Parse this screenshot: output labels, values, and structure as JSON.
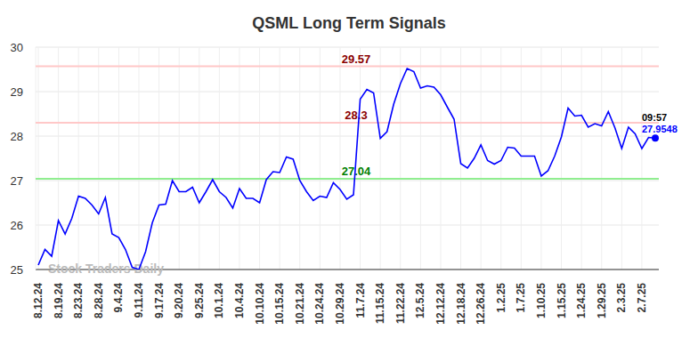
{
  "chart_data": {
    "type": "line",
    "title": "QSML Long Term Signals",
    "categories": [
      "8.12.24",
      null,
      null,
      "8.19.24",
      null,
      null,
      "8.23.24",
      null,
      null,
      "8.28.24",
      null,
      null,
      "9.4.24",
      null,
      null,
      "9.11.24",
      null,
      null,
      "9.17.24",
      null,
      null,
      "9.20.24",
      null,
      null,
      "9.25.24",
      null,
      null,
      "10.1.24",
      null,
      null,
      "10.4.24",
      null,
      null,
      "10.10.24",
      null,
      null,
      "10.15.24",
      null,
      null,
      "10.21.24",
      null,
      null,
      "10.24.24",
      null,
      null,
      "10.29.24",
      null,
      null,
      "11.7.24",
      null,
      null,
      "11.15.24",
      null,
      null,
      "11.22.24",
      null,
      null,
      "12.5.24",
      null,
      null,
      "12.12.24",
      null,
      null,
      "12.18.24",
      null,
      null,
      "12.26.24",
      null,
      null,
      "1.2.25",
      null,
      null,
      "1.7.25",
      null,
      null,
      "1.10.25",
      null,
      null,
      "1.15.25",
      null,
      null,
      "1.24.25",
      null,
      null,
      "1.29.25",
      null,
      null,
      "2.3.25",
      null,
      null,
      "2.7.25",
      null,
      null
    ],
    "values": [
      25.1,
      25.45,
      25.3,
      26.1,
      25.8,
      26.15,
      26.65,
      26.6,
      26.45,
      26.25,
      26.62,
      25.8,
      25.72,
      25.45,
      25.05,
      25.0,
      25.4,
      26.05,
      26.45,
      26.47,
      27.0,
      26.75,
      26.75,
      26.85,
      26.5,
      26.75,
      27.02,
      26.75,
      26.62,
      26.38,
      26.82,
      26.6,
      26.6,
      26.5,
      27.02,
      27.2,
      27.18,
      27.53,
      27.48,
      27.0,
      26.75,
      26.55,
      26.65,
      26.62,
      26.95,
      26.8,
      26.58,
      26.68,
      28.83,
      29.05,
      28.97,
      27.95,
      28.1,
      28.72,
      29.18,
      29.52,
      29.45,
      29.08,
      29.13,
      29.1,
      28.93,
      28.65,
      28.38,
      27.38,
      27.28,
      27.5,
      27.8,
      27.45,
      27.37,
      27.45,
      27.75,
      27.73,
      27.55,
      27.55,
      27.55,
      27.1,
      27.22,
      27.55,
      27.98,
      28.63,
      28.45,
      28.47,
      28.2,
      28.28,
      28.23,
      28.55,
      28.18,
      27.72,
      28.2,
      28.05,
      27.72,
      27.97,
      27.9548
    ],
    "color": "#0000ff",
    "ylim": [
      25,
      30
    ],
    "yticks": [
      25,
      26,
      27,
      28,
      29,
      30
    ],
    "grid": true,
    "annotations": [
      {
        "value": 29.57,
        "label": "29.57",
        "color": "#8b0000"
      },
      {
        "value": 28.3,
        "label": "28.3",
        "color": "#8b0000"
      },
      {
        "value": 27.04,
        "label": "27.04",
        "color": "#008000"
      }
    ],
    "end_time": "09:57",
    "watermark": "Stock Traders Daily"
  }
}
